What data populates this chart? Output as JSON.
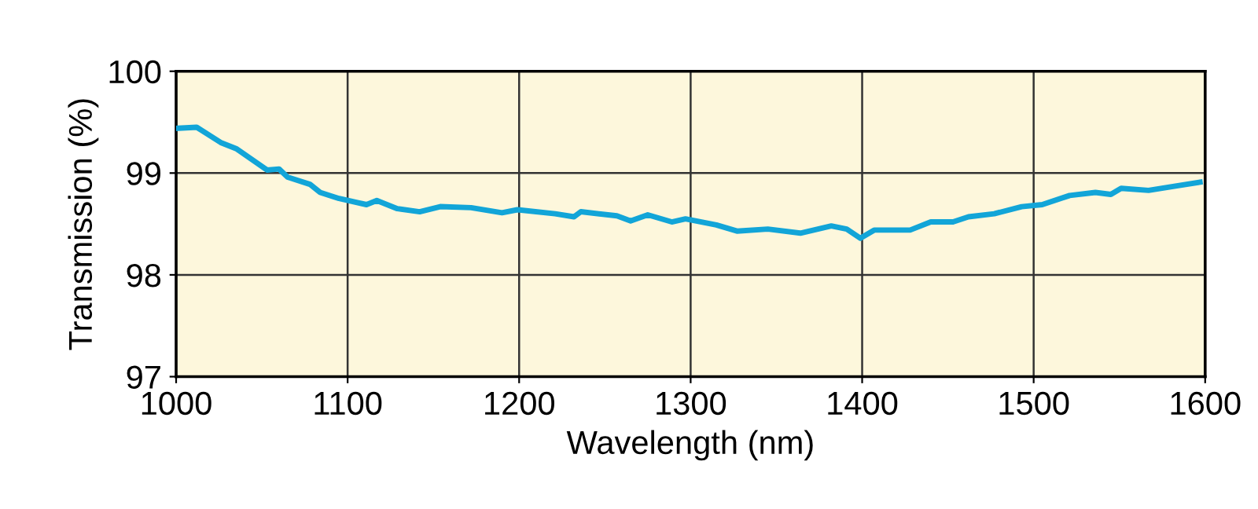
{
  "chart_data": {
    "type": "line",
    "xlabel": "Wavelength (nm)",
    "ylabel": "Transmission (%)",
    "x": [
      1001,
      1012,
      1026,
      1035,
      1053,
      1060,
      1065,
      1078,
      1084,
      1095,
      1111,
      1117,
      1129,
      1142,
      1154,
      1172,
      1190,
      1199,
      1221,
      1232,
      1236,
      1257,
      1265,
      1275,
      1289,
      1297,
      1315,
      1327,
      1345,
      1364,
      1382,
      1391,
      1399,
      1407,
      1428,
      1440,
      1453,
      1462,
      1477,
      1493,
      1505,
      1521,
      1536,
      1545,
      1551,
      1567,
      1582,
      1597
    ],
    "series": [
      {
        "color": "#12a5d8",
        "values": [
          99.44,
          99.45,
          99.3,
          99.24,
          99.03,
          99.04,
          98.96,
          98.89,
          98.81,
          98.75,
          98.69,
          98.73,
          98.65,
          98.62,
          98.67,
          98.66,
          98.61,
          98.64,
          98.6,
          98.57,
          98.62,
          98.58,
          98.53,
          98.59,
          98.52,
          98.55,
          98.49,
          98.43,
          98.45,
          98.41,
          98.48,
          98.45,
          98.36,
          98.44,
          98.44,
          98.52,
          98.52,
          98.57,
          98.6,
          98.67,
          98.69,
          98.78,
          98.81,
          98.79,
          98.85,
          98.83,
          98.87,
          98.91
        ]
      }
    ],
    "xlim": [
      1000,
      1600
    ],
    "xticks": [
      1000,
      1100,
      1200,
      1300,
      1400,
      1500,
      1600
    ],
    "ylim": [
      97,
      100
    ],
    "yticks": [
      97,
      98,
      99,
      100
    ],
    "grid": true,
    "marker": "none",
    "line_style": "solid",
    "legend": false
  }
}
